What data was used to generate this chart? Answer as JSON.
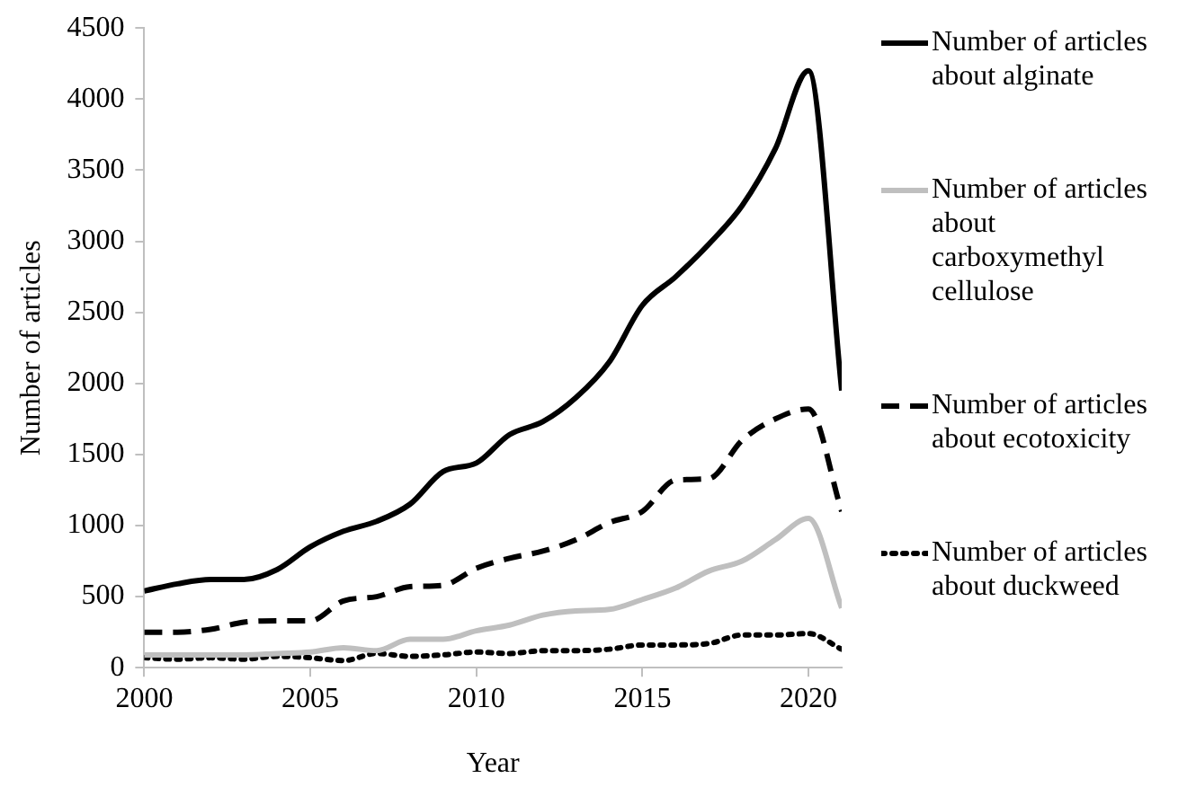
{
  "chart_data": {
    "type": "line",
    "xlabel": "Year",
    "ylabel": "Number of articles",
    "x": [
      2000,
      2001,
      2002,
      2003,
      2004,
      2005,
      2006,
      2007,
      2008,
      2009,
      2010,
      2011,
      2012,
      2013,
      2014,
      2015,
      2016,
      2017,
      2018,
      2019,
      2020,
      2021
    ],
    "series": [
      {
        "name": "Number of articles about alginate",
        "color": "#000000",
        "line_style": "solid",
        "values": [
          540,
          590,
          620,
          620,
          690,
          850,
          960,
          1030,
          1150,
          1380,
          1440,
          1640,
          1730,
          1900,
          2150,
          2550,
          2750,
          2980,
          3250,
          3650,
          4200,
          1950
        ]
      },
      {
        "name": "Number of articles about carboxymethyl cellulose",
        "color": "#bfbfbf",
        "line_style": "solid",
        "values": [
          90,
          90,
          90,
          90,
          100,
          110,
          140,
          120,
          200,
          200,
          260,
          300,
          370,
          400,
          410,
          480,
          560,
          680,
          750,
          900,
          1050,
          420
        ]
      },
      {
        "name": "Number of articles about ecotoxicity",
        "color": "#000000",
        "line_style": "dashed",
        "values": [
          250,
          250,
          270,
          320,
          330,
          330,
          470,
          500,
          570,
          580,
          700,
          770,
          820,
          900,
          1020,
          1100,
          1320,
          1330,
          1600,
          1750,
          1820,
          1100
        ]
      },
      {
        "name": "Number of articles about duckweed",
        "color": "#000000",
        "line_style": "dotted",
        "values": [
          70,
          60,
          70,
          60,
          80,
          70,
          50,
          100,
          80,
          90,
          110,
          100,
          120,
          120,
          130,
          160,
          160,
          170,
          230,
          230,
          240,
          130
        ]
      }
    ],
    "xlim": [
      2000,
      2021
    ],
    "xticks": [
      2000,
      2005,
      2010,
      2015,
      2020
    ],
    "ylim": [
      0,
      4500
    ],
    "yticks": [
      0,
      500,
      1000,
      1500,
      2000,
      2500,
      3000,
      3500,
      4000,
      4500
    ],
    "grid": false,
    "legend": "right",
    "marker": "none"
  }
}
